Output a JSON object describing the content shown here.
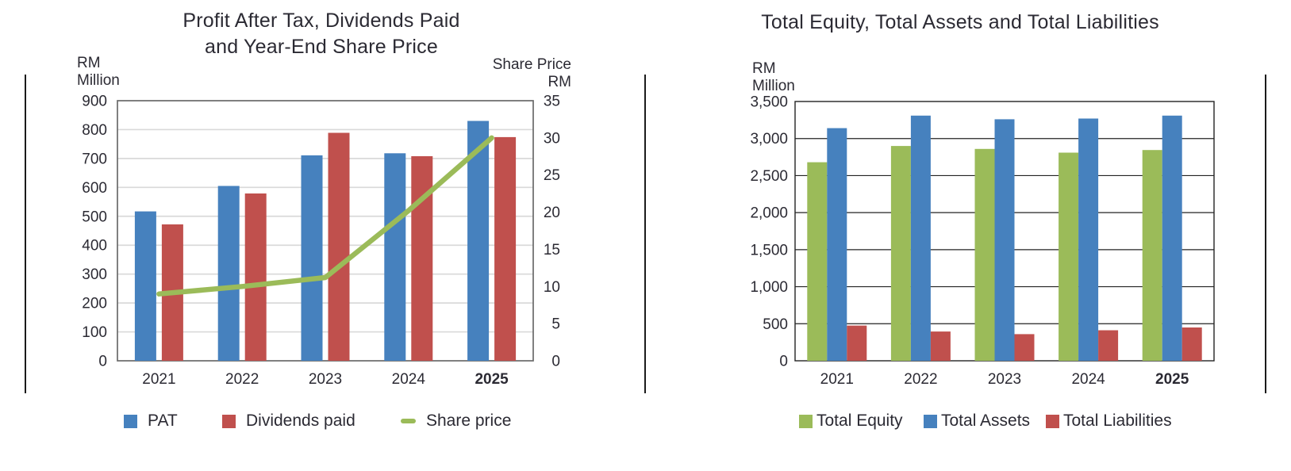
{
  "colors": {
    "blue": "#4681BE",
    "red": "#C0504D",
    "green": "#9BBB59",
    "text": "#2B2A33",
    "grid_light": "#D9D9D9",
    "grid_dark": "#232323",
    "border_gray": "#6A6A6A",
    "rule": "#1B1B1B"
  },
  "chart_data": [
    {
      "type": "bar+line",
      "title_lines": [
        "Profit After Tax, Dividends Paid",
        "and Year-End Share Price"
      ],
      "y_axis": {
        "header": [
          "RM",
          "Million"
        ],
        "min": 0,
        "max": 900,
        "step": 100,
        "tick_labels": [
          "900",
          "800",
          "700",
          "600",
          "500",
          "400",
          "300",
          "200",
          "100",
          "0"
        ]
      },
      "y2_axis": {
        "header": [
          "Share Price",
          "RM"
        ],
        "min": 0,
        "max": 35,
        "step": 5,
        "tick_labels": [
          "35",
          "30",
          "25",
          "20",
          "15",
          "10",
          "5",
          "0"
        ]
      },
      "categories": [
        "2021",
        "2022",
        "2023",
        "2024",
        "2025"
      ],
      "bold_last_category": true,
      "grid": "light-horizontal",
      "legend_position": "bottom",
      "series": [
        {
          "name": "PAT",
          "type": "bar",
          "color_key": "blue",
          "values": [
            517,
            605,
            711,
            718,
            830
          ]
        },
        {
          "name": "Dividends paid",
          "type": "bar",
          "color_key": "red",
          "values": [
            472,
            579,
            789,
            708,
            774
          ]
        },
        {
          "name": "Share price",
          "type": "line",
          "axis": "y2",
          "color_key": "green",
          "values": [
            9.0,
            10.0,
            11.2,
            20.2,
            30.0
          ]
        }
      ],
      "legend": [
        {
          "label": "PAT",
          "swatch": "square",
          "color_key": "blue"
        },
        {
          "label": "Dividends paid",
          "swatch": "square",
          "color_key": "red"
        },
        {
          "label": "Share price",
          "swatch": "dash",
          "color_key": "green"
        }
      ]
    },
    {
      "type": "bar",
      "title_lines": [
        "Total Equity, Total Assets and Total Liabilities"
      ],
      "y_axis": {
        "header": [
          "RM",
          "Million"
        ],
        "min": 0,
        "max": 3500,
        "step": 500,
        "tick_labels": [
          "3,500",
          "3,000",
          "2,500",
          "2,000",
          "1,500",
          "1,000",
          "500",
          "0"
        ]
      },
      "categories": [
        "2021",
        "2022",
        "2023",
        "2024",
        "2025"
      ],
      "bold_last_category": true,
      "grid": "dark-horizontal",
      "legend_position": "bottom",
      "series": [
        {
          "name": "Total Equity",
          "type": "bar",
          "color_key": "green",
          "values": [
            2680,
            2900,
            2860,
            2810,
            2845
          ]
        },
        {
          "name": "Total Assets",
          "type": "bar",
          "color_key": "blue",
          "values": [
            3140,
            3310,
            3260,
            3270,
            3310
          ]
        },
        {
          "name": "Total Liabilities",
          "type": "bar",
          "color_key": "red",
          "values": [
            475,
            395,
            360,
            412,
            450
          ]
        }
      ],
      "legend": [
        {
          "label": "Total Equity",
          "swatch": "square",
          "color_key": "green"
        },
        {
          "label": "Total Assets",
          "swatch": "square",
          "color_key": "blue"
        },
        {
          "label": "Total Liabilities",
          "swatch": "square",
          "color_key": "red"
        }
      ]
    }
  ]
}
